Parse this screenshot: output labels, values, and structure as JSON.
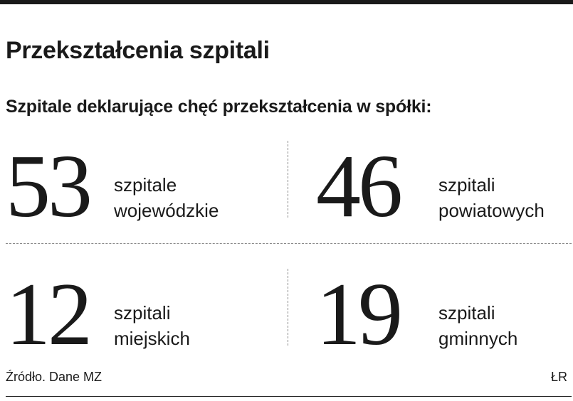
{
  "title": "Przekształcenia szpitali",
  "subtitle": "Szpitale deklarujące chęć przekształcenia w spółki:",
  "stats": [
    {
      "value": "53",
      "line1": "szpitale",
      "line2": "wojewódzkie"
    },
    {
      "value": "46",
      "line1": "szpitali",
      "line2": "powiatowych"
    },
    {
      "value": "12",
      "line1": "szpitali",
      "line2": "miejskich"
    },
    {
      "value": "19",
      "line1": "szpitali",
      "line2": "gminnych"
    }
  ],
  "source": "Źródło. Dane MZ",
  "credit": "ŁR"
}
